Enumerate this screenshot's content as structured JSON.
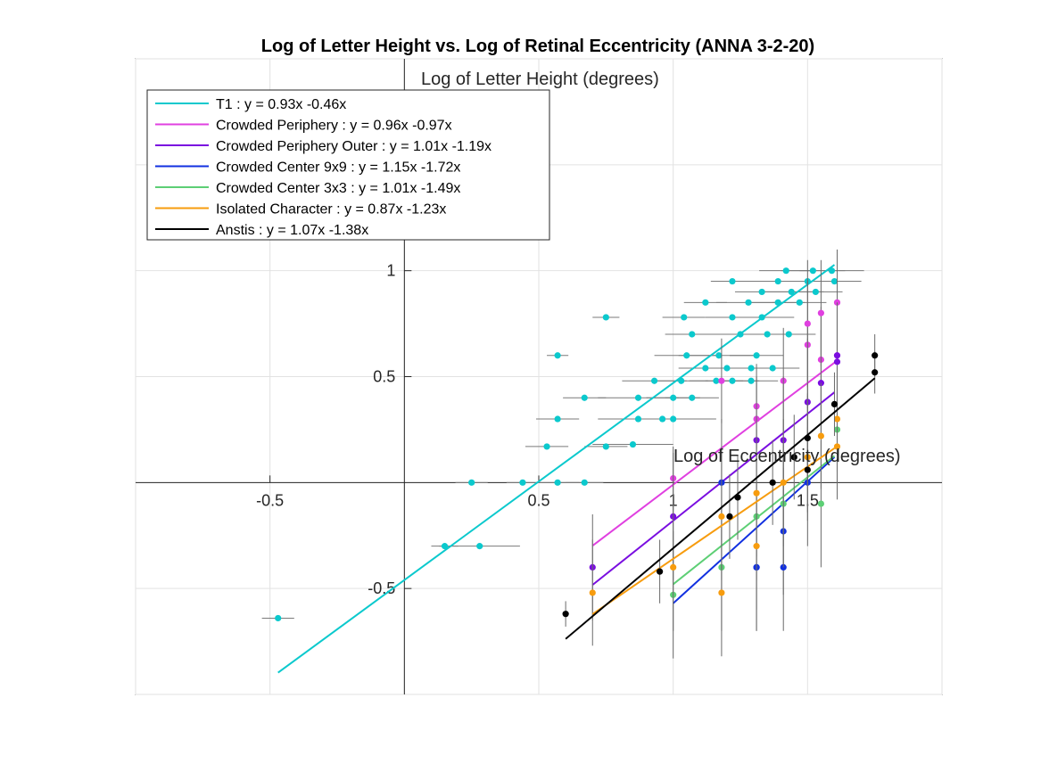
{
  "chart_data": {
    "type": "scatter",
    "title": "Log of Letter Height vs. Log of Retinal Eccentricity (ANNA 3-2-20)",
    "xlabel": "Log of Eccentricity (degrees)",
    "ylabel": "Log of Letter Height (degrees)",
    "xlim": [
      -1,
      2
    ],
    "ylim": [
      -1,
      2
    ],
    "xticks": [
      -0.5,
      0.5,
      1,
      1.5
    ],
    "yticks": [
      -0.5,
      0.5,
      1
    ],
    "grid": true,
    "legend_position": "top-left",
    "series": [
      {
        "name": "T1 : y = 0.93x -0.46x",
        "color": "#0bc9cd",
        "fit": {
          "slope": 0.93,
          "intercept": -0.46,
          "x_range": [
            -0.47,
            1.6
          ]
        },
        "points": [
          {
            "x": -0.47,
            "y": -0.64,
            "xerr": 0.06
          },
          {
            "x": 0.15,
            "y": -0.3,
            "xerr": 0.05
          },
          {
            "x": 0.28,
            "y": -0.3,
            "xerr": 0.15
          },
          {
            "x": 0.25,
            "y": 0.0,
            "xerr": 0.06
          },
          {
            "x": 0.44,
            "y": 0.0,
            "xerr": 0.06
          },
          {
            "x": 0.57,
            "y": 0.0,
            "xerr": 0.08
          },
          {
            "x": 0.67,
            "y": 0.0,
            "xerr": 0.07
          },
          {
            "x": 0.53,
            "y": 0.17,
            "xerr": 0.08
          },
          {
            "x": 0.75,
            "y": 0.17,
            "xerr": 0.08
          },
          {
            "x": 0.85,
            "y": 0.18,
            "xerr": 0.15
          },
          {
            "x": 0.57,
            "y": 0.3,
            "xerr": 0.08
          },
          {
            "x": 0.87,
            "y": 0.3,
            "xerr": 0.15
          },
          {
            "x": 0.96,
            "y": 0.3,
            "xerr": 0.2
          },
          {
            "x": 1.0,
            "y": 0.3,
            "xerr": 0.08
          },
          {
            "x": 0.67,
            "y": 0.4,
            "xerr": 0.08
          },
          {
            "x": 0.87,
            "y": 0.4,
            "xerr": 0.15
          },
          {
            "x": 1.0,
            "y": 0.4,
            "xerr": 0.1
          },
          {
            "x": 1.07,
            "y": 0.4,
            "xerr": 0.1
          },
          {
            "x": 0.93,
            "y": 0.48,
            "xerr": 0.12
          },
          {
            "x": 1.03,
            "y": 0.48,
            "xerr": 0.1
          },
          {
            "x": 1.16,
            "y": 0.48,
            "xerr": 0.1
          },
          {
            "x": 1.22,
            "y": 0.48,
            "xerr": 0.1
          },
          {
            "x": 1.29,
            "y": 0.48,
            "xerr": 0.1
          },
          {
            "x": 1.12,
            "y": 0.54,
            "xerr": 0.1
          },
          {
            "x": 1.2,
            "y": 0.54,
            "xerr": 0.12
          },
          {
            "x": 1.29,
            "y": 0.54,
            "xerr": 0.1
          },
          {
            "x": 1.37,
            "y": 0.54,
            "xerr": 0.1
          },
          {
            "x": 0.57,
            "y": 0.6,
            "xerr": 0.04
          },
          {
            "x": 1.05,
            "y": 0.6,
            "xerr": 0.12
          },
          {
            "x": 1.17,
            "y": 0.6,
            "xerr": 0.15
          },
          {
            "x": 1.31,
            "y": 0.6,
            "xerr": 0.1
          },
          {
            "x": 1.07,
            "y": 0.7,
            "xerr": 0.1
          },
          {
            "x": 1.25,
            "y": 0.7,
            "xerr": 0.1
          },
          {
            "x": 1.35,
            "y": 0.7,
            "xerr": 0.1
          },
          {
            "x": 1.43,
            "y": 0.7,
            "xerr": 0.1
          },
          {
            "x": 0.75,
            "y": 0.78,
            "xerr": 0.05
          },
          {
            "x": 1.04,
            "y": 0.78,
            "xerr": 0.08
          },
          {
            "x": 1.22,
            "y": 0.78,
            "xerr": 0.1
          },
          {
            "x": 1.33,
            "y": 0.78,
            "xerr": 0.12
          },
          {
            "x": 1.12,
            "y": 0.85,
            "xerr": 0.08
          },
          {
            "x": 1.28,
            "y": 0.85,
            "xerr": 0.12
          },
          {
            "x": 1.39,
            "y": 0.85,
            "xerr": 0.1
          },
          {
            "x": 1.47,
            "y": 0.85,
            "xerr": 0.1
          },
          {
            "x": 1.33,
            "y": 0.9,
            "xerr": 0.1
          },
          {
            "x": 1.44,
            "y": 0.9,
            "xerr": 0.12
          },
          {
            "x": 1.53,
            "y": 0.9,
            "xerr": 0.1
          },
          {
            "x": 1.22,
            "y": 0.95,
            "xerr": 0.08
          },
          {
            "x": 1.39,
            "y": 0.95,
            "xerr": 0.12
          },
          {
            "x": 1.5,
            "y": 0.95,
            "xerr": 0.12
          },
          {
            "x": 1.6,
            "y": 0.95,
            "xerr": 0.1
          },
          {
            "x": 1.42,
            "y": 1.0,
            "xerr": 0.1
          },
          {
            "x": 1.52,
            "y": 1.0,
            "xerr": 0.12
          },
          {
            "x": 1.59,
            "y": 1.0,
            "xerr": 0.12
          }
        ]
      },
      {
        "name": "Crowded Periphery : y = 0.96x -0.97x",
        "color": "#e040e0",
        "fit": {
          "slope": 0.96,
          "intercept": -0.97,
          "x_range": [
            0.7,
            1.6
          ]
        },
        "points": [
          {
            "x": 1.0,
            "y": 0.02,
            "yerr": 0.15
          },
          {
            "x": 1.18,
            "y": 0.48,
            "yerr": 0.2
          },
          {
            "x": 1.31,
            "y": 0.3,
            "yerr": 0.2
          },
          {
            "x": 1.31,
            "y": 0.36,
            "yerr": 0.2
          },
          {
            "x": 1.41,
            "y": 0.48,
            "yerr": 0.25
          },
          {
            "x": 1.5,
            "y": 0.65,
            "yerr": 0.3
          },
          {
            "x": 1.5,
            "y": 0.75,
            "yerr": 0.3
          },
          {
            "x": 1.55,
            "y": 0.58,
            "yerr": 0.25
          },
          {
            "x": 1.55,
            "y": 0.8,
            "yerr": 0.25
          },
          {
            "x": 1.61,
            "y": 0.6,
            "yerr": 0.25
          },
          {
            "x": 1.61,
            "y": 0.85,
            "yerr": 0.25
          }
        ]
      },
      {
        "name": "Crowded Periphery Outer : y = 1.01x -1.19x",
        "color": "#7a0ee0",
        "fit": {
          "slope": 1.01,
          "intercept": -1.19,
          "x_range": [
            0.7,
            1.6
          ]
        },
        "points": [
          {
            "x": 0.7,
            "y": -0.4,
            "yerr": 0.25
          },
          {
            "x": 1.0,
            "y": -0.16,
            "yerr": 0.3
          },
          {
            "x": 1.31,
            "y": 0.2,
            "yerr": 0.3
          },
          {
            "x": 1.41,
            "y": 0.2,
            "yerr": 0.3
          },
          {
            "x": 1.5,
            "y": 0.38,
            "yerr": 0.3
          },
          {
            "x": 1.55,
            "y": 0.47,
            "yerr": 0.25
          },
          {
            "x": 1.61,
            "y": 0.6,
            "yerr": 0.25
          },
          {
            "x": 1.61,
            "y": 0.57,
            "yerr": 0.25
          }
        ]
      },
      {
        "name": "Crowded Center 9x9 : y = 1.15x -1.72x",
        "color": "#1130e0",
        "fit": {
          "slope": 1.15,
          "intercept": -1.72,
          "x_range": [
            1.0,
            1.6
          ]
        },
        "points": [
          {
            "x": 1.18,
            "y": 0.0,
            "yerr": 0.3
          },
          {
            "x": 1.31,
            "y": -0.4,
            "yerr": 0.3
          },
          {
            "x": 1.31,
            "y": -0.4,
            "yerr": 0.3
          },
          {
            "x": 1.41,
            "y": -0.4,
            "yerr": 0.3
          },
          {
            "x": 1.41,
            "y": -0.23,
            "yerr": 0.3
          },
          {
            "x": 1.5,
            "y": 0.0,
            "yerr": 0.3
          }
        ]
      },
      {
        "name": "Crowded Center 3x3 : y = 1.01x -1.49x",
        "color": "#5dcf75",
        "fit": {
          "slope": 1.01,
          "intercept": -1.49,
          "x_range": [
            1.0,
            1.6
          ]
        },
        "points": [
          {
            "x": 1.0,
            "y": -0.53,
            "yerr": 0.3
          },
          {
            "x": 1.18,
            "y": -0.4,
            "yerr": 0.3
          },
          {
            "x": 1.31,
            "y": -0.16,
            "yerr": 0.3
          },
          {
            "x": 1.41,
            "y": -0.1,
            "yerr": 0.3
          },
          {
            "x": 1.55,
            "y": -0.1,
            "yerr": 0.3
          },
          {
            "x": 1.61,
            "y": 0.25,
            "yerr": 0.25
          }
        ]
      },
      {
        "name": "Isolated Character : y = 0.87x -1.23x",
        "color": "#f79c0e",
        "fit": {
          "slope": 0.87,
          "intercept": -1.23,
          "x_range": [
            0.7,
            1.6
          ]
        },
        "points": [
          {
            "x": 0.7,
            "y": -0.52,
            "yerr": 0.25
          },
          {
            "x": 1.0,
            "y": -0.4,
            "yerr": 0.3
          },
          {
            "x": 1.18,
            "y": -0.52,
            "yerr": 0.3
          },
          {
            "x": 1.18,
            "y": -0.16,
            "yerr": 0.3
          },
          {
            "x": 1.31,
            "y": -0.3,
            "yerr": 0.3
          },
          {
            "x": 1.31,
            "y": -0.05,
            "yerr": 0.3
          },
          {
            "x": 1.41,
            "y": 0.0,
            "yerr": 0.3
          },
          {
            "x": 1.5,
            "y": 0.12,
            "yerr": 0.3
          },
          {
            "x": 1.55,
            "y": 0.22,
            "yerr": 0.25
          },
          {
            "x": 1.61,
            "y": 0.17,
            "yerr": 0.25
          },
          {
            "x": 1.61,
            "y": 0.3,
            "yerr": 0.25
          }
        ]
      },
      {
        "name": "Anstis : y = 1.07x -1.38x",
        "color": "#000000",
        "fit": {
          "slope": 1.07,
          "intercept": -1.38,
          "x_range": [
            0.6,
            1.75
          ]
        },
        "points": [
          {
            "x": 0.6,
            "y": -0.62,
            "yerr": 0.06
          },
          {
            "x": 0.95,
            "y": -0.42,
            "yerr": 0.15
          },
          {
            "x": 1.21,
            "y": -0.16,
            "yerr": 0.2
          },
          {
            "x": 1.24,
            "y": -0.07,
            "yerr": 0.2
          },
          {
            "x": 1.37,
            "y": 0.0,
            "yerr": 0.2
          },
          {
            "x": 1.45,
            "y": 0.12,
            "yerr": 0.2
          },
          {
            "x": 1.5,
            "y": 0.06,
            "yerr": 0.2
          },
          {
            "x": 1.5,
            "y": 0.21,
            "yerr": 0.2
          },
          {
            "x": 1.6,
            "y": 0.37,
            "yerr": 0.15
          },
          {
            "x": 1.75,
            "y": 0.52,
            "yerr": 0.1
          },
          {
            "x": 1.75,
            "y": 0.6,
            "yerr": 0.1
          }
        ]
      }
    ]
  }
}
